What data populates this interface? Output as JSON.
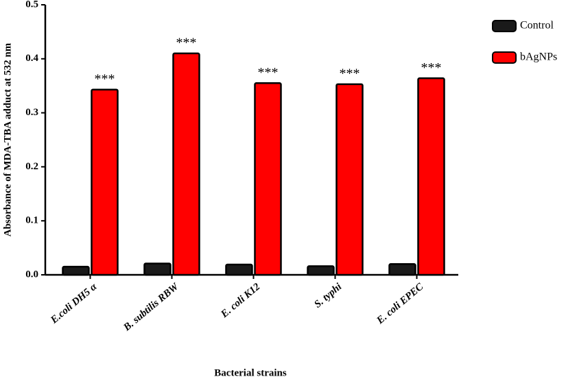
{
  "chart_data": {
    "type": "bar",
    "y_label": "Absorbance of MDA-TBA adduct at 532 nm",
    "x_label": "Bacterial strains",
    "categories": [
      "E.coli DH5 α",
      "B. subtilis RBW",
      "E. coli K12",
      "S. typhi",
      "E. coli EPEC"
    ],
    "series": [
      {
        "name": "Control",
        "color": "#1a1a1a",
        "values": [
          0.015,
          0.021,
          0.019,
          0.016,
          0.02
        ]
      },
      {
        "name": "bAgNPs",
        "color": "#ff0000",
        "values": [
          0.343,
          0.41,
          0.355,
          0.353,
          0.364
        ]
      }
    ],
    "annotations": [
      "***",
      "***",
      "***",
      "***",
      "***"
    ],
    "ylim": [
      0,
      0.5
    ],
    "yticks": [
      {
        "value": 0,
        "label": "0.0"
      },
      0.1,
      0.2,
      0.3,
      0.4,
      0.5
    ],
    "legend": "top-right"
  }
}
